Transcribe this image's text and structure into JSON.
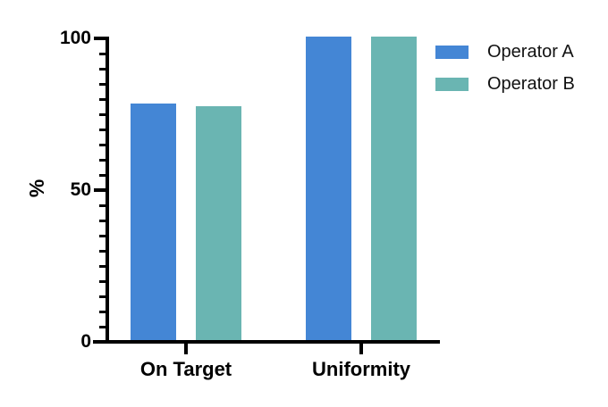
{
  "chart_data": {
    "type": "bar",
    "title": "",
    "xlabel": "",
    "ylabel": "%",
    "categories": [
      "On Target",
      "Uniformity"
    ],
    "series": [
      {
        "name": "Operator A",
        "color": "#4486d5",
        "values": [
          78,
          100
        ]
      },
      {
        "name": "Operator B",
        "color": "#6ab5b2",
        "values": [
          77,
          100
        ]
      }
    ],
    "ylim": [
      0,
      100
    ],
    "yticks": [
      0,
      50,
      100
    ],
    "minor_tick_step": 5,
    "grid": false,
    "legend_position": "top-right",
    "axis_color": "#000000",
    "text_color": "#000000",
    "background_color": "#ffffff"
  }
}
